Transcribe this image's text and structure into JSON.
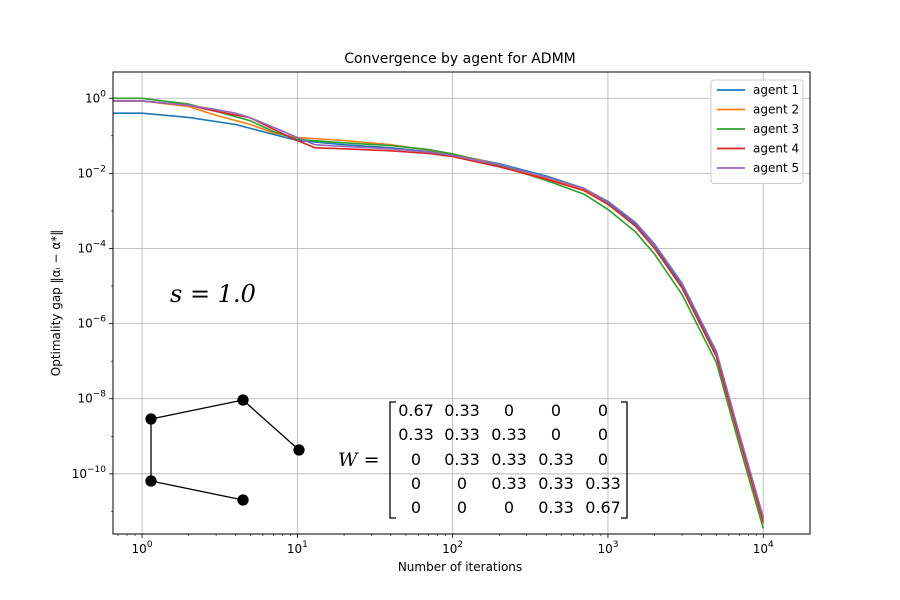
{
  "chart_data": {
    "type": "line",
    "title": "Convergence by agent for ADMM",
    "xlabel": "Number of iterations",
    "ylabel": "Optimality gap ‖αᵢ − α*‖",
    "x_scale": "log",
    "y_scale": "log",
    "xlim": [
      0.65,
      20000
    ],
    "ylim": [
      2.5e-12,
      5
    ],
    "x_ticks": [
      {
        "value": 1,
        "label": "10^0"
      },
      {
        "value": 10,
        "label": "10^1"
      },
      {
        "value": 100,
        "label": "10^2"
      },
      {
        "value": 1000,
        "label": "10^3"
      },
      {
        "value": 10000,
        "label": "10^4"
      }
    ],
    "y_ticks": [
      {
        "value": 1,
        "label": "10^0"
      },
      {
        "value": 0.01,
        "label": "10^-2"
      },
      {
        "value": 0.0001,
        "label": "10^-4"
      },
      {
        "value": 1e-06,
        "label": "10^-6"
      },
      {
        "value": 1e-08,
        "label": "10^-8"
      },
      {
        "value": 1e-10,
        "label": "10^-10"
      }
    ],
    "grid": true,
    "legend_position": "top-right",
    "series": [
      {
        "name": "agent 1",
        "color": "#1f77b4",
        "x": [
          0.6,
          1,
          2,
          4,
          7,
          10,
          20,
          40,
          70,
          100,
          200,
          400,
          700,
          1000,
          1500,
          2000,
          3000,
          5000,
          7000,
          10000
        ],
        "y": [
          0.4,
          0.4,
          0.31,
          0.2,
          0.11,
          0.075,
          0.058,
          0.048,
          0.038,
          0.032,
          0.018,
          0.0085,
          0.004,
          0.0017,
          0.00045,
          0.00012,
          1e-05,
          1.5e-07,
          1e-09,
          6e-12
        ]
      },
      {
        "name": "agent 2",
        "color": "#ff7f0e",
        "x": [
          0.6,
          1,
          2,
          3,
          5,
          7,
          10,
          20,
          40,
          70,
          100,
          200,
          400,
          700,
          1000,
          1500,
          2000,
          3000,
          5000,
          7000,
          10000
        ],
        "y": [
          0.85,
          0.85,
          0.6,
          0.35,
          0.2,
          0.12,
          0.09,
          0.075,
          0.058,
          0.042,
          0.033,
          0.017,
          0.0075,
          0.0037,
          0.0015,
          0.0004,
          0.0001,
          9e-06,
          1.3e-07,
          9e-10,
          5.5e-12
        ]
      },
      {
        "name": "agent 3",
        "color": "#2ca02c",
        "x": [
          0.6,
          1,
          2,
          3,
          5,
          7,
          10,
          20,
          40,
          70,
          100,
          200,
          400,
          700,
          1000,
          1500,
          2000,
          3000,
          5000,
          7000,
          10000
        ],
        "y": [
          1.0,
          1.0,
          0.7,
          0.45,
          0.25,
          0.13,
          0.08,
          0.065,
          0.055,
          0.043,
          0.033,
          0.016,
          0.0065,
          0.0028,
          0.0011,
          0.00028,
          7e-05,
          6e-06,
          9e-08,
          6e-10,
          3.5e-12
        ]
      },
      {
        "name": "agent 4",
        "color": "#d62728",
        "x": [
          0.6,
          1,
          2,
          3,
          5,
          7,
          10,
          13,
          20,
          40,
          70,
          100,
          200,
          400,
          700,
          1000,
          1500,
          2000,
          3000,
          5000,
          7000,
          10000
        ],
        "y": [
          0.85,
          0.85,
          0.65,
          0.45,
          0.3,
          0.15,
          0.075,
          0.048,
          0.045,
          0.04,
          0.034,
          0.028,
          0.015,
          0.007,
          0.0035,
          0.0015,
          0.0004,
          0.0001,
          9e-06,
          1.3e-07,
          9e-10,
          5e-12
        ]
      },
      {
        "name": "agent 5",
        "color": "#9467bd",
        "x": [
          0.6,
          1,
          2,
          3,
          4,
          5,
          7,
          10,
          13,
          20,
          40,
          70,
          100,
          200,
          400,
          700,
          1000,
          1500,
          2000,
          3000,
          5000,
          7000,
          10000
        ],
        "y": [
          0.85,
          0.85,
          0.65,
          0.5,
          0.4,
          0.3,
          0.17,
          0.09,
          0.058,
          0.052,
          0.045,
          0.037,
          0.03,
          0.017,
          0.008,
          0.004,
          0.0018,
          0.0005,
          0.00013,
          1.2e-05,
          1.8e-07,
          1.2e-09,
          7e-12
        ]
      }
    ],
    "annotations": {
      "s_label": "s = 1.0",
      "matrix_label": "W =",
      "matrix": [
        [
          "0.67",
          "0.33",
          "0",
          "0",
          "0"
        ],
        [
          "0.33",
          "0.33",
          "0.33",
          "0",
          "0"
        ],
        [
          "0",
          "0.33",
          "0.33",
          "0.33",
          "0"
        ],
        [
          "0",
          "0",
          "0.33",
          "0.33",
          "0.33"
        ],
        [
          "0",
          "0",
          "0",
          "0.33",
          "0.67"
        ]
      ]
    }
  }
}
